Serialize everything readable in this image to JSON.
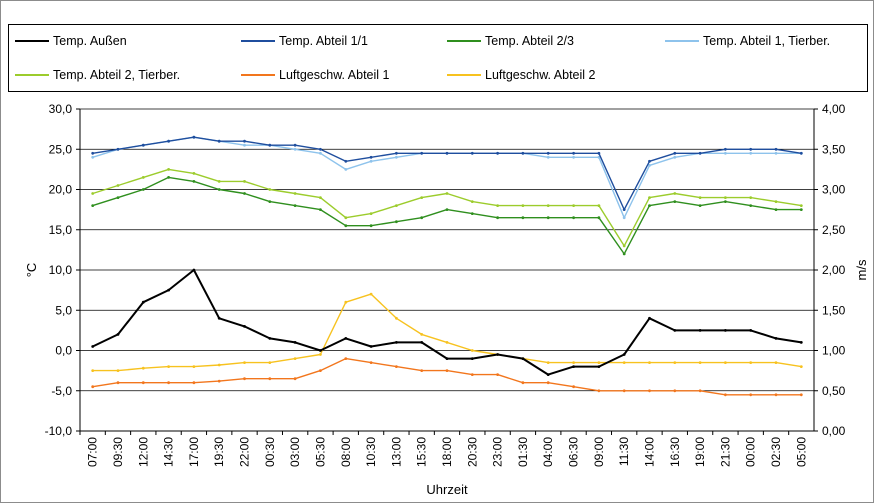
{
  "chart_data": {
    "type": "line",
    "xlabel": "Uhrzeit",
    "ylabel_left": "°C",
    "ylabel_right": "m/s",
    "ylim_left": [
      -10,
      30
    ],
    "ylim_right": [
      0,
      4
    ],
    "yticks_left": [
      "-10,0",
      "-5,0",
      "0,0",
      "5,0",
      "10,0",
      "15,0",
      "20,0",
      "25,0",
      "30,0"
    ],
    "yticks_right": [
      "0,00",
      "0,50",
      "1,00",
      "1,50",
      "2,00",
      "2,50",
      "3,00",
      "3,50",
      "4,00"
    ],
    "x": [
      "07:00",
      "09:30",
      "12:00",
      "14:30",
      "17:00",
      "19:30",
      "22:00",
      "00:30",
      "03:00",
      "05:30",
      "08:00",
      "10:30",
      "13:00",
      "15:30",
      "18:00",
      "20:30",
      "23:00",
      "01:30",
      "04:00",
      "06:30",
      "09:00",
      "11:30",
      "14:00",
      "16:30",
      "19:00",
      "21:30",
      "00:00",
      "02:30",
      "05:00"
    ],
    "grid": "horizontal",
    "legend_position": "top",
    "series": [
      {
        "name": "Temp. Außen",
        "axis": "left",
        "color": "#000000",
        "values": [
          0.5,
          2,
          6,
          7.5,
          10,
          4,
          3,
          1.5,
          1,
          0,
          1.5,
          0.5,
          1,
          1,
          -1,
          -1,
          -0.5,
          -1,
          -3,
          -2,
          -2,
          -0.5,
          4,
          2.5,
          2.5,
          2.5,
          2.5,
          1.5,
          1
        ]
      },
      {
        "name": "Temp. Abteil 1/1",
        "axis": "left",
        "color": "#1f4e9e",
        "values": [
          24.5,
          25,
          25.5,
          26,
          26.5,
          26,
          26,
          25.5,
          25.5,
          25,
          23.5,
          24,
          24.5,
          24.5,
          24.5,
          24.5,
          24.5,
          24.5,
          24.5,
          24.5,
          24.5,
          17.5,
          23.5,
          24.5,
          24.5,
          25,
          25,
          25,
          24.5
        ]
      },
      {
        "name": "Temp. Abteil 2/3",
        "axis": "left",
        "color": "#2f8f1e",
        "values": [
          18,
          19,
          20,
          21.5,
          21,
          20,
          19.5,
          18.5,
          18,
          17.5,
          15.5,
          15.5,
          16,
          16.5,
          17.5,
          17,
          16.5,
          16.5,
          16.5,
          16.5,
          16.5,
          12,
          18,
          18.5,
          18,
          18.5,
          18,
          17.5,
          17.5
        ]
      },
      {
        "name": "Temp. Abteil 1, Tierber.",
        "axis": "left",
        "color": "#8ec3ec",
        "values": [
          24,
          25,
          25.5,
          26,
          26.5,
          26,
          25.5,
          25.5,
          25,
          24.5,
          22.5,
          23.5,
          24,
          24.5,
          24.5,
          24.5,
          24.5,
          24.5,
          24,
          24,
          24,
          16.5,
          23,
          24,
          24.5,
          24.5,
          24.5,
          24.5,
          24.5
        ]
      },
      {
        "name": "Temp. Abteil 2, Tierber.",
        "axis": "left",
        "color": "#9ccc2c",
        "values": [
          19.5,
          20.5,
          21.5,
          22.5,
          22,
          21,
          21,
          20,
          19.5,
          19,
          16.5,
          17,
          18,
          19,
          19.5,
          18.5,
          18,
          18,
          18,
          18,
          18,
          13,
          19,
          19.5,
          19,
          19,
          19,
          18.5,
          18
        ]
      },
      {
        "name": "Luftgeschw. Abteil 1",
        "axis": "right",
        "color": "#f2761d",
        "values": [
          0.55,
          0.6,
          0.6,
          0.6,
          0.6,
          0.62,
          0.65,
          0.65,
          0.65,
          0.75,
          0.9,
          0.85,
          0.8,
          0.75,
          0.75,
          0.7,
          0.7,
          0.6,
          0.6,
          0.55,
          0.5,
          0.5,
          0.5,
          0.5,
          0.5,
          0.45,
          0.45,
          0.45,
          0.45
        ]
      },
      {
        "name": "Luftgeschw. Abteil 2",
        "axis": "right",
        "color": "#f7c21f",
        "values": [
          0.75,
          0.75,
          0.78,
          0.8,
          0.8,
          0.82,
          0.85,
          0.85,
          0.9,
          0.95,
          1.6,
          1.7,
          1.4,
          1.2,
          1.1,
          1.0,
          0.95,
          0.9,
          0.85,
          0.85,
          0.85,
          0.85,
          0.85,
          0.85,
          0.85,
          0.85,
          0.85,
          0.85,
          0.8
        ]
      }
    ]
  }
}
